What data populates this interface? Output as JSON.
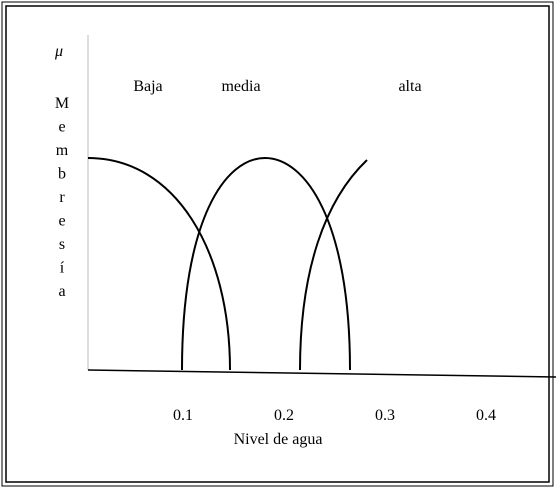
{
  "symbol": "μ",
  "y_axis_label": [
    "M",
    "e",
    "m",
    "b",
    "r",
    "e",
    "s",
    "í",
    "a"
  ],
  "sets": [
    "Baja",
    "media",
    "alta"
  ],
  "x_ticks": [
    "0.1",
    "0.2",
    "0.3",
    "0.4"
  ],
  "x_axis_label": "Nivel de agua"
}
